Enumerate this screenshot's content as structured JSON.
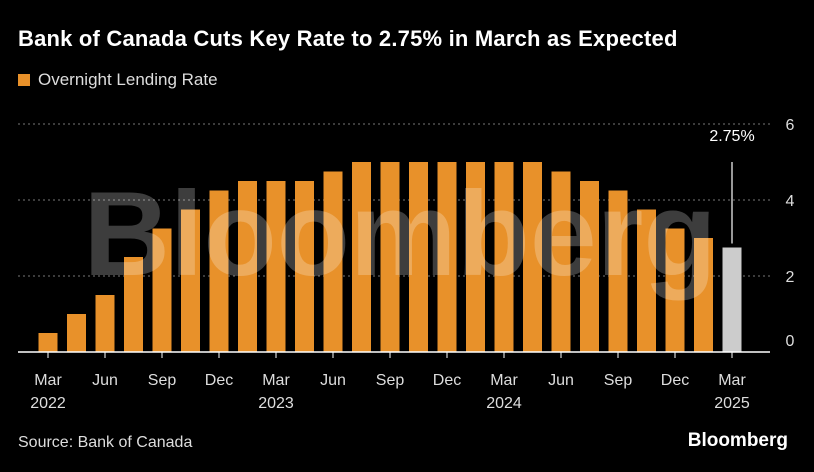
{
  "header": {
    "title": "Bank of Canada Cuts Key Rate to 2.75% in March as Expected",
    "legend_label": "Overnight Lending Rate"
  },
  "footer": {
    "source": "Source: Bank of Canada",
    "brand": "Bloomberg"
  },
  "watermark": "Bloomberg",
  "colors": {
    "bar": "#e8912a",
    "highlight": "#cccccc",
    "grid": "#777777",
    "background": "#000000"
  },
  "chart_data": {
    "type": "bar",
    "title": "Bank of Canada Cuts Key Rate to 2.75% in March as Expected",
    "series": [
      {
        "name": "Overnight Lending Rate",
        "values": [
          0.5,
          1.0,
          1.5,
          2.5,
          3.25,
          3.75,
          4.25,
          4.5,
          4.5,
          4.5,
          4.75,
          5.0,
          5.0,
          5.0,
          5.0,
          5.0,
          5.0,
          5.0,
          4.75,
          4.5,
          4.25,
          3.75,
          3.25,
          3.0,
          2.75
        ]
      }
    ],
    "highlight_index": 24,
    "annotation": {
      "label": "2.75%",
      "index": 24
    },
    "x_ticks": [
      {
        "index": 0,
        "month": "Mar",
        "year": "2022"
      },
      {
        "index": 2,
        "month": "Jun",
        "year": ""
      },
      {
        "index": 4,
        "month": "Sep",
        "year": ""
      },
      {
        "index": 6,
        "month": "Dec",
        "year": ""
      },
      {
        "index": 8,
        "month": "Mar",
        "year": "2023"
      },
      {
        "index": 10,
        "month": "Jun",
        "year": ""
      },
      {
        "index": 12,
        "month": "Sep",
        "year": ""
      },
      {
        "index": 14,
        "month": "Dec",
        "year": ""
      },
      {
        "index": 16,
        "month": "Mar",
        "year": "2024"
      },
      {
        "index": 18,
        "month": "Jun",
        "year": ""
      },
      {
        "index": 20,
        "month": "Sep",
        "year": ""
      },
      {
        "index": 22,
        "month": "Dec",
        "year": ""
      },
      {
        "index": 24,
        "month": "Mar",
        "year": "2025"
      }
    ],
    "y_ticks": [
      0,
      2,
      4,
      6
    ],
    "ylim": [
      0,
      6
    ],
    "xlabel": "",
    "ylabel": "",
    "grid": true,
    "legend_position": "top-left"
  }
}
